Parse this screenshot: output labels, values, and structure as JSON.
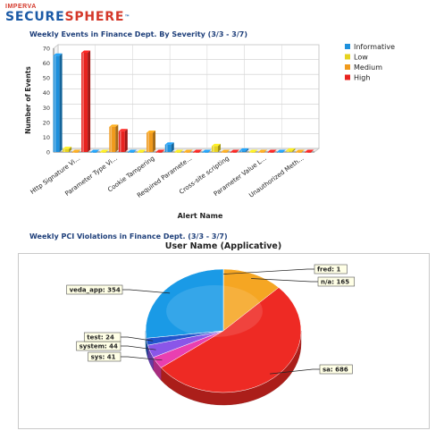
{
  "brand": {
    "top": "IMPERVA",
    "main_part1": "SECURE",
    "main_part2": "SPHERE",
    "tm": "™"
  },
  "chart1": {
    "section_title": "Weekly Events in Finance Dept. By Severity (3/3 - 3/7)"
  },
  "chart2": {
    "section_title": "Weekly PCI Violations in Finance Dept. (3/3 - 3/7)",
    "title": "User Name (Applicative)"
  },
  "colors": {
    "informative": "#1e90dc",
    "low": "#e6d21e",
    "medium": "#f09a1c",
    "high": "#e8231f",
    "axis": "#444444",
    "grid": "#c8c8c8",
    "title": "#1e3f7a"
  },
  "chart_data": [
    {
      "type": "bar",
      "title": "",
      "xlabel": "Alert Name",
      "ylabel": "Number of Events",
      "ylim": [
        0,
        70
      ],
      "yticks": [
        0,
        10,
        20,
        30,
        40,
        50,
        60,
        70
      ],
      "grid": true,
      "legend_position": "right",
      "categories": [
        "Http Signature Vi...",
        "Parameter Type Vi...",
        "Cookie Tampering",
        "Required Paramete...",
        "Cross-site scripting",
        "Parameter Value L...",
        "Unauthorized Meth..."
      ],
      "series": [
        {
          "name": "Informative",
          "color": "#1e90dc",
          "values": [
            65,
            0,
            0,
            5,
            0,
            1,
            0
          ]
        },
        {
          "name": "Low",
          "color": "#e6d21e",
          "values": [
            2,
            0,
            0,
            0,
            4,
            0,
            1
          ]
        },
        {
          "name": "Medium",
          "color": "#f09a1c",
          "values": [
            0,
            17,
            13,
            0,
            0,
            0,
            0
          ]
        },
        {
          "name": "High",
          "color": "#e8231f",
          "values": [
            67,
            14,
            0,
            0,
            0,
            0,
            0
          ]
        }
      ]
    },
    {
      "type": "pie",
      "title": "User Name (Applicative)",
      "slices": [
        {
          "label": "fred: 1",
          "value": 1,
          "color": "#e8e8e8"
        },
        {
          "label": "n/a: 165",
          "value": 165,
          "color": "#f5a623"
        },
        {
          "label": "sa: 686",
          "value": 686,
          "color": "#ee2a24"
        },
        {
          "label": "sys: 41",
          "value": 41,
          "color": "#e93fb0"
        },
        {
          "label": "system: 44",
          "value": 44,
          "color": "#8a56e8"
        },
        {
          "label": "test: 24",
          "value": 24,
          "color": "#2255cc"
        },
        {
          "label": "veda_app: 354",
          "value": 354,
          "color": "#1a9ae6"
        }
      ]
    }
  ]
}
